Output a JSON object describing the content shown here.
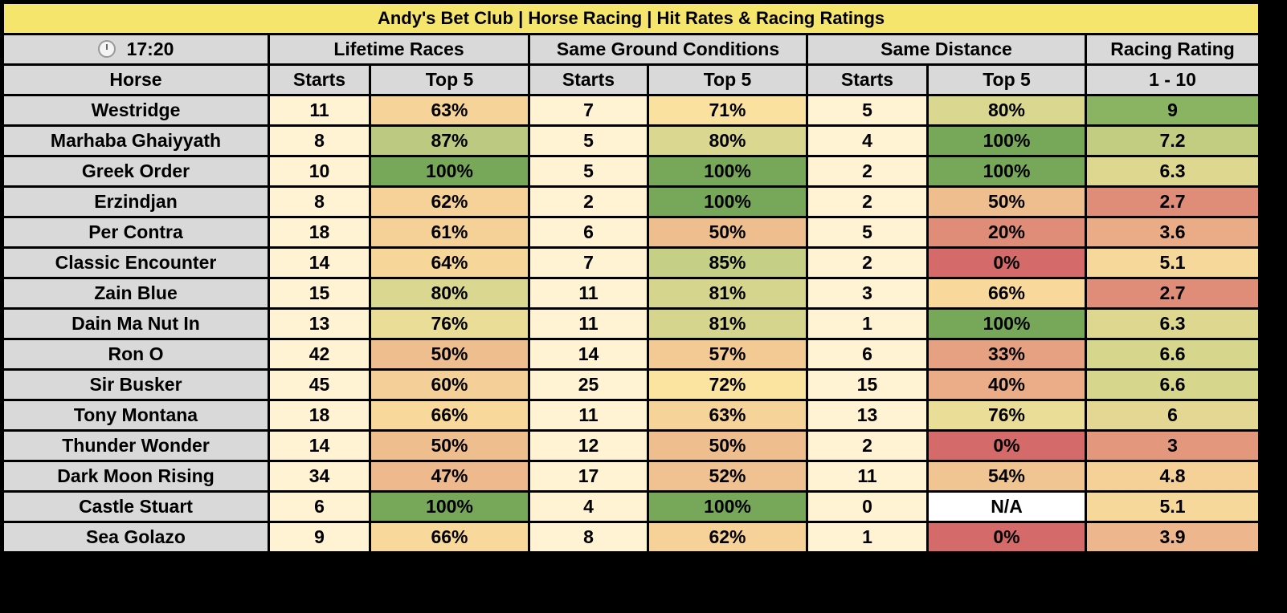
{
  "title": "Andy's Bet Club | Horse Racing | Hit Rates & Racing Ratings",
  "header": {
    "time": "17:20",
    "time_icon": "stopwatch-icon",
    "groups": [
      "Lifetime Races",
      "Same Ground Conditions",
      "Same Distance",
      "Racing Rating"
    ],
    "horse_label": "Horse",
    "starts_label": "Starts",
    "top5_label": "Top 5",
    "rating_range": "1 - 10"
  },
  "colors": {
    "title_bg": "#f6e56d",
    "header_bg": "#d9d9d9",
    "starts_bg": "#fff3d3",
    "low": "#d46a6a",
    "mid": "#f9e2a0",
    "high": "#77a85a",
    "na_bg": "#ffffff"
  },
  "rows": [
    {
      "horse": "Westridge",
      "l_starts": "11",
      "l_top5": "63%",
      "g_starts": "7",
      "g_top5": "71%",
      "d_starts": "5",
      "d_top5": "80%",
      "rating": "9"
    },
    {
      "horse": "Marhaba Ghaiyyath",
      "l_starts": "8",
      "l_top5": "87%",
      "g_starts": "5",
      "g_top5": "80%",
      "d_starts": "4",
      "d_top5": "100%",
      "rating": "7.2"
    },
    {
      "horse": "Greek Order",
      "l_starts": "10",
      "l_top5": "100%",
      "g_starts": "5",
      "g_top5": "100%",
      "d_starts": "2",
      "d_top5": "100%",
      "rating": "6.3"
    },
    {
      "horse": "Erzindjan",
      "l_starts": "8",
      "l_top5": "62%",
      "g_starts": "2",
      "g_top5": "100%",
      "d_starts": "2",
      "d_top5": "50%",
      "rating": "2.7"
    },
    {
      "horse": "Per Contra",
      "l_starts": "18",
      "l_top5": "61%",
      "g_starts": "6",
      "g_top5": "50%",
      "d_starts": "5",
      "d_top5": "20%",
      "rating": "3.6"
    },
    {
      "horse": "Classic Encounter",
      "l_starts": "14",
      "l_top5": "64%",
      "g_starts": "7",
      "g_top5": "85%",
      "d_starts": "2",
      "d_top5": "0%",
      "rating": "5.1"
    },
    {
      "horse": "Zain Blue",
      "l_starts": "15",
      "l_top5": "80%",
      "g_starts": "11",
      "g_top5": "81%",
      "d_starts": "3",
      "d_top5": "66%",
      "rating": "2.7"
    },
    {
      "horse": "Dain Ma Nut In",
      "l_starts": "13",
      "l_top5": "76%",
      "g_starts": "11",
      "g_top5": "81%",
      "d_starts": "1",
      "d_top5": "100%",
      "rating": "6.3"
    },
    {
      "horse": "Ron O",
      "l_starts": "42",
      "l_top5": "50%",
      "g_starts": "14",
      "g_top5": "57%",
      "d_starts": "6",
      "d_top5": "33%",
      "rating": "6.6"
    },
    {
      "horse": "Sir Busker",
      "l_starts": "45",
      "l_top5": "60%",
      "g_starts": "25",
      "g_top5": "72%",
      "d_starts": "15",
      "d_top5": "40%",
      "rating": "6.6"
    },
    {
      "horse": "Tony Montana",
      "l_starts": "18",
      "l_top5": "66%",
      "g_starts": "11",
      "g_top5": "63%",
      "d_starts": "13",
      "d_top5": "76%",
      "rating": "6"
    },
    {
      "horse": "Thunder Wonder",
      "l_starts": "14",
      "l_top5": "50%",
      "g_starts": "12",
      "g_top5": "50%",
      "d_starts": "2",
      "d_top5": "0%",
      "rating": "3"
    },
    {
      "horse": "Dark Moon Rising",
      "l_starts": "34",
      "l_top5": "47%",
      "g_starts": "17",
      "g_top5": "52%",
      "d_starts": "11",
      "d_top5": "54%",
      "rating": "4.8"
    },
    {
      "horse": "Castle Stuart",
      "l_starts": "6",
      "l_top5": "100%",
      "g_starts": "4",
      "g_top5": "100%",
      "d_starts": "0",
      "d_top5": "N/A",
      "rating": "5.1"
    },
    {
      "horse": "Sea Golazo",
      "l_starts": "9",
      "l_top5": "66%",
      "g_starts": "8",
      "g_top5": "62%",
      "d_starts": "1",
      "d_top5": "0%",
      "rating": "3.9"
    }
  ]
}
